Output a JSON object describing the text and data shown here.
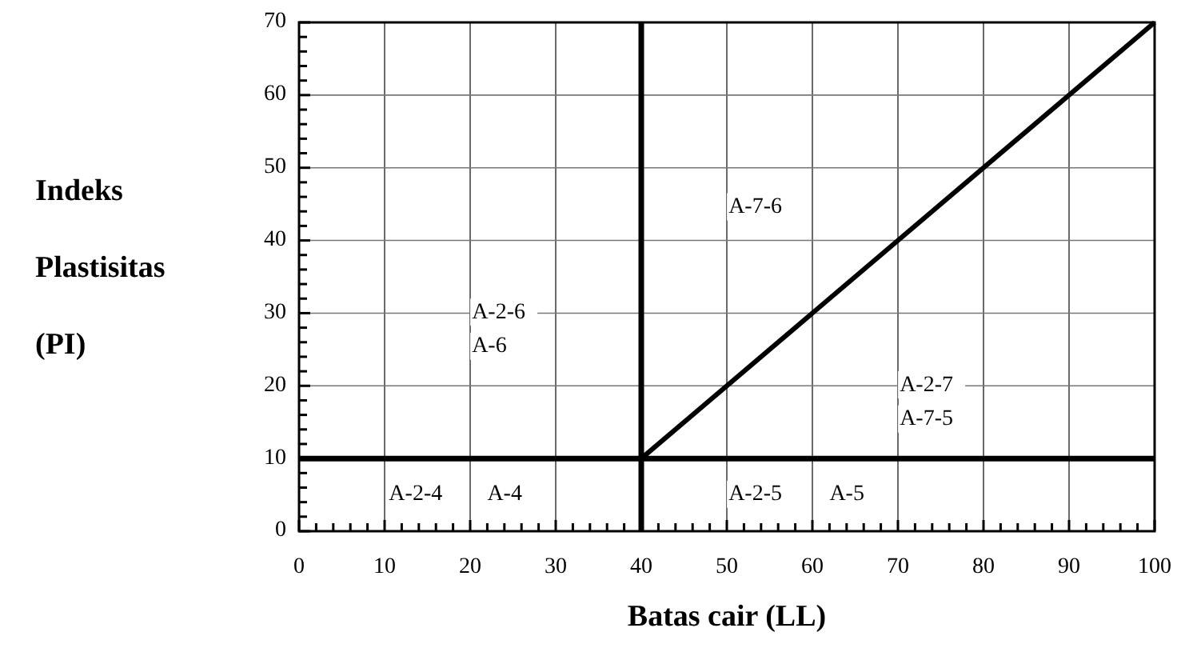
{
  "chart_data": {
    "type": "line",
    "xlabel": "Batas cair (LL)",
    "ylabel": "Indeks Plastisitas (PI)",
    "xlim": [
      0,
      100
    ],
    "ylim": [
      0,
      70
    ],
    "xticks": [
      0,
      {
        "value": 2,
        "label": null
      },
      {
        "value": 4,
        "label": null
      },
      {
        "value": 6,
        "label": null
      },
      {
        "value": 8,
        "label": null
      },
      10,
      {
        "value": 12,
        "label": null
      },
      {
        "value": 14,
        "label": null
      },
      {
        "value": 16,
        "label": null
      },
      {
        "value": 18,
        "label": null
      },
      20,
      {
        "value": 22,
        "label": null
      },
      {
        "value": 24,
        "label": null
      },
      {
        "value": 26,
        "label": null
      },
      {
        "value": 28,
        "label": null
      },
      30,
      {
        "value": 32,
        "label": null
      },
      {
        "value": 34,
        "label": null
      },
      {
        "value": 36,
        "label": null
      },
      {
        "value": 38,
        "label": null
      },
      40,
      {
        "value": 42,
        "label": null
      },
      {
        "value": 44,
        "label": null
      },
      {
        "value": 46,
        "label": null
      },
      {
        "value": 48,
        "label": null
      },
      50,
      {
        "value": 52,
        "label": null
      },
      {
        "value": 54,
        "label": null
      },
      {
        "value": 56,
        "label": null
      },
      {
        "value": 58,
        "label": null
      },
      60,
      {
        "value": 62,
        "label": null
      },
      {
        "value": 64,
        "label": null
      },
      {
        "value": 66,
        "label": null
      },
      {
        "value": 68,
        "label": null
      },
      70,
      {
        "value": 72,
        "label": null
      },
      {
        "value": 74,
        "label": null
      },
      {
        "value": 76,
        "label": null
      },
      {
        "value": 78,
        "label": null
      },
      80,
      {
        "value": 82,
        "label": null
      },
      {
        "value": 84,
        "label": null
      },
      {
        "value": 86,
        "label": null
      },
      {
        "value": 88,
        "label": null
      },
      90,
      {
        "value": 92,
        "label": null
      },
      {
        "value": 94,
        "label": null
      },
      {
        "value": 96,
        "label": null
      },
      {
        "value": 98,
        "label": null
      },
      100
    ],
    "yticks": [
      0,
      {
        "value": 2,
        "label": null
      },
      {
        "value": 4,
        "label": null
      },
      {
        "value": 6,
        "label": null
      },
      {
        "value": 8,
        "label": null
      },
      10,
      {
        "value": 12,
        "label": null
      },
      {
        "value": 14,
        "label": null
      },
      {
        "value": 16,
        "label": null
      },
      {
        "value": 18,
        "label": null
      },
      20,
      {
        "value": 22,
        "label": null
      },
      {
        "value": 24,
        "label": null
      },
      {
        "value": 26,
        "label": null
      },
      {
        "value": 28,
        "label": null
      },
      30,
      {
        "value": 32,
        "label": null
      },
      {
        "value": 34,
        "label": null
      },
      {
        "value": 36,
        "label": null
      },
      {
        "value": 38,
        "label": null
      },
      40,
      {
        "value": 42,
        "label": null
      },
      {
        "value": 44,
        "label": null
      },
      {
        "value": 46,
        "label": null
      },
      {
        "value": 48,
        "label": null
      },
      50,
      {
        "value": 52,
        "label": null
      },
      {
        "value": 54,
        "label": null
      },
      {
        "value": 56,
        "label": null
      },
      {
        "value": 58,
        "label": null
      },
      60,
      {
        "value": 62,
        "label": null
      },
      {
        "value": 64,
        "label": null
      },
      {
        "value": 66,
        "label": null
      },
      {
        "value": 68,
        "label": null
      },
      70
    ],
    "grid": true,
    "marker": "none",
    "line_style": "solid",
    "series": [
      {
        "color": "#000000",
        "x": [
          40,
          100
        ],
        "values": [
          10,
          70
        ]
      },
      {
        "color": "#000000",
        "x": [
          0,
          100
        ],
        "values": [
          10,
          10
        ]
      },
      {
        "color": "#000000",
        "x": [
          40,
          40
        ],
        "values": [
          0,
          70
        ]
      }
    ],
    "annotations": [
      "A-2-4",
      "A-4",
      "A-2-6",
      "A-6",
      "A-7-6",
      "A-2-7",
      "A-7-5",
      "A-2-5",
      "A-5"
    ]
  }
}
